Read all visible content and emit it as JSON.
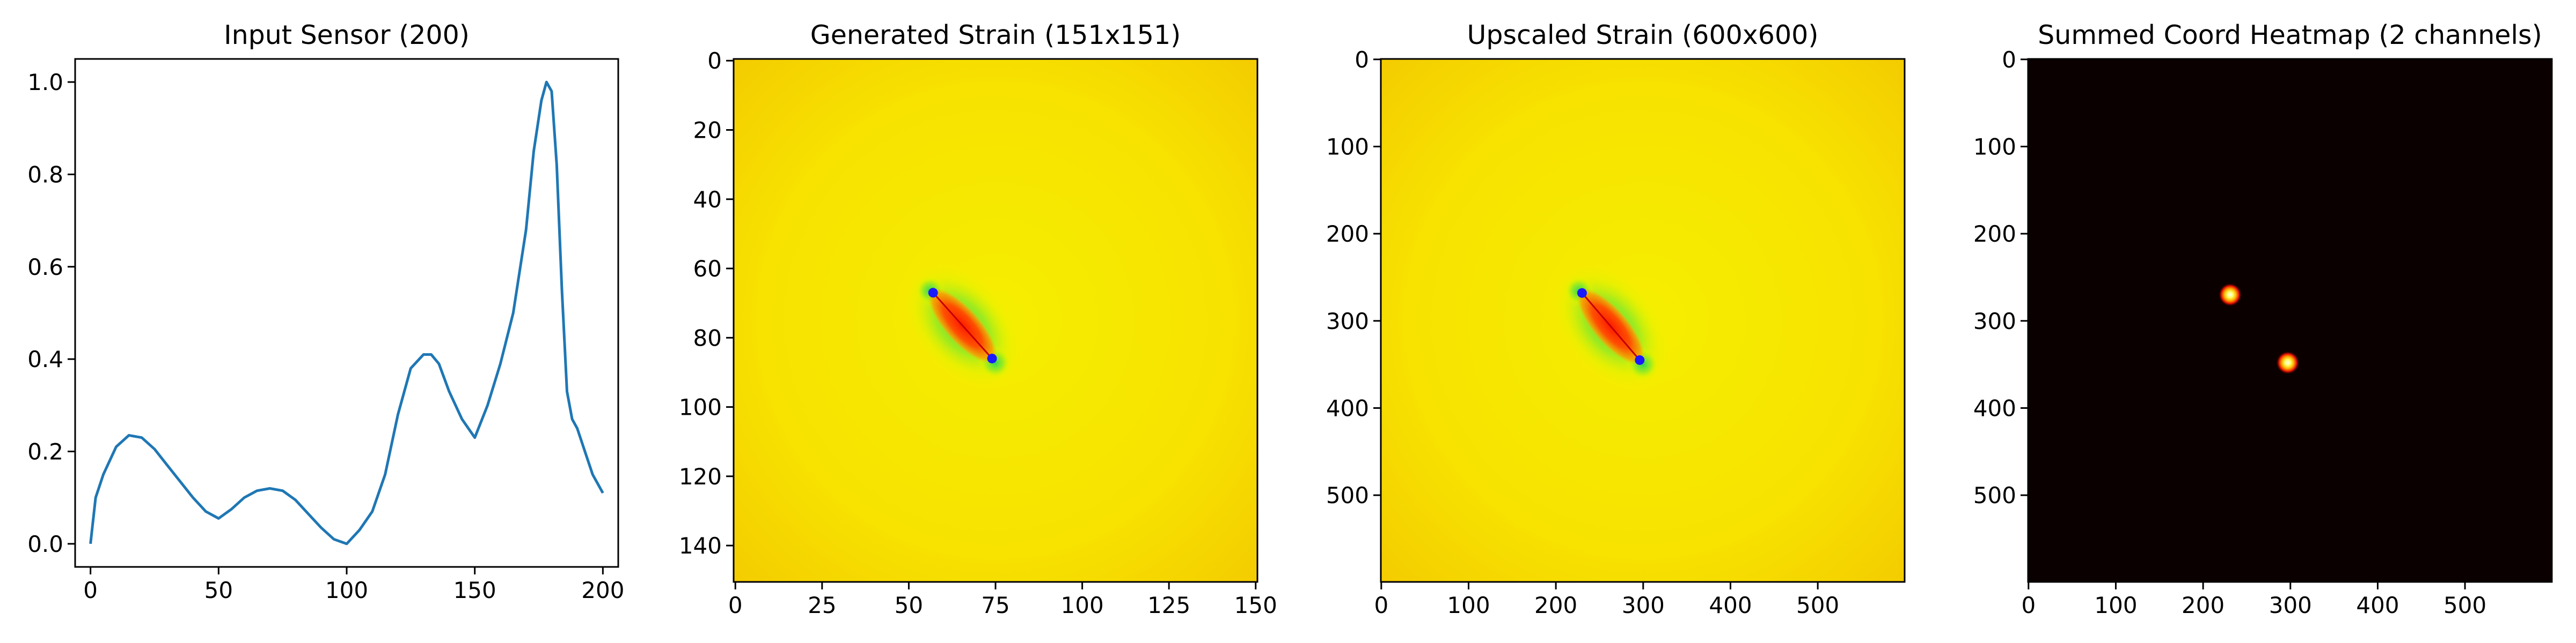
{
  "chart_data": [
    {
      "type": "line",
      "title": "Input Sensor (200)",
      "xlabel": "",
      "ylabel": "",
      "xlim": [
        -6,
        206
      ],
      "ylim": [
        -0.05,
        1.05
      ],
      "x_ticks": [
        0,
        50,
        100,
        150,
        200
      ],
      "y_ticks": [
        0.0,
        0.2,
        0.4,
        0.6,
        0.8,
        1.0
      ],
      "x_tick_labels": [
        "0",
        "50",
        "100",
        "150",
        "200"
      ],
      "y_tick_labels": [
        "0.0",
        "0.2",
        "0.4",
        "0.6",
        "0.8",
        "1.0"
      ],
      "line_color": "#1f77b4",
      "series": [
        {
          "x": [
            0,
            2,
            5,
            10,
            15,
            20,
            25,
            30,
            35,
            40,
            45,
            50,
            55,
            60,
            65,
            70,
            75,
            80,
            85,
            90,
            95,
            100,
            105,
            110,
            115,
            120,
            125,
            130,
            133,
            136,
            140,
            145,
            150,
            155,
            160,
            165,
            170,
            173,
            176,
            178,
            180,
            182,
            184,
            186,
            188,
            190,
            193,
            196,
            200
          ],
          "y": [
            0.0,
            0.1,
            0.15,
            0.21,
            0.235,
            0.23,
            0.205,
            0.17,
            0.135,
            0.1,
            0.07,
            0.055,
            0.075,
            0.1,
            0.115,
            0.12,
            0.115,
            0.095,
            0.065,
            0.035,
            0.01,
            0.0,
            0.03,
            0.07,
            0.15,
            0.28,
            0.38,
            0.41,
            0.41,
            0.39,
            0.33,
            0.27,
            0.23,
            0.3,
            0.39,
            0.5,
            0.68,
            0.85,
            0.96,
            1.0,
            0.98,
            0.82,
            0.55,
            0.33,
            0.27,
            0.25,
            0.2,
            0.15,
            0.11
          ]
        }
      ]
    },
    {
      "type": "heatmap",
      "title": "Generated Strain (151x151)",
      "colormap": "jet",
      "xlim": [
        -0.5,
        150.5
      ],
      "ylim": [
        150.5,
        -0.5
      ],
      "x_ticks": [
        0,
        25,
        50,
        75,
        100,
        125,
        150
      ],
      "y_ticks": [
        0,
        20,
        40,
        60,
        80,
        100,
        120,
        140
      ],
      "x_tick_labels": [
        "0",
        "25",
        "50",
        "75",
        "100",
        "125",
        "150"
      ],
      "y_tick_labels": [
        "0",
        "20",
        "40",
        "60",
        "80",
        "100",
        "120",
        "140"
      ],
      "features": [
        {
          "kind": "crack",
          "from": [
            57,
            67
          ],
          "to": [
            74,
            86
          ]
        }
      ]
    },
    {
      "type": "heatmap",
      "title": "Upscaled Strain (600x600)",
      "colormap": "jet",
      "xlim": [
        -0.5,
        599.5
      ],
      "ylim": [
        599.5,
        -0.5
      ],
      "x_ticks": [
        0,
        100,
        200,
        300,
        400,
        500
      ],
      "y_ticks": [
        0,
        100,
        200,
        300,
        400,
        500
      ],
      "x_tick_labels": [
        "0",
        "100",
        "200",
        "300",
        "400",
        "500"
      ],
      "y_tick_labels": [
        "0",
        "100",
        "200",
        "300",
        "400",
        "500"
      ],
      "features": [
        {
          "kind": "crack",
          "from": [
            230,
            268
          ],
          "to": [
            296,
            345
          ]
        }
      ]
    },
    {
      "type": "heatmap",
      "title": "Summed Coord Heatmap (2 channels)",
      "colormap": "hot",
      "xlim": [
        -0.5,
        599.5
      ],
      "ylim": [
        599.5,
        -0.5
      ],
      "x_ticks": [
        0,
        100,
        200,
        300,
        400,
        500
      ],
      "y_ticks": [
        0,
        100,
        200,
        300,
        400,
        500
      ],
      "x_tick_labels": [
        "0",
        "100",
        "200",
        "300",
        "400",
        "500"
      ],
      "y_tick_labels": [
        "0",
        "100",
        "200",
        "300",
        "400",
        "500"
      ],
      "peaks": [
        {
          "x": 231,
          "y": 270
        },
        {
          "x": 297,
          "y": 348
        }
      ]
    }
  ]
}
